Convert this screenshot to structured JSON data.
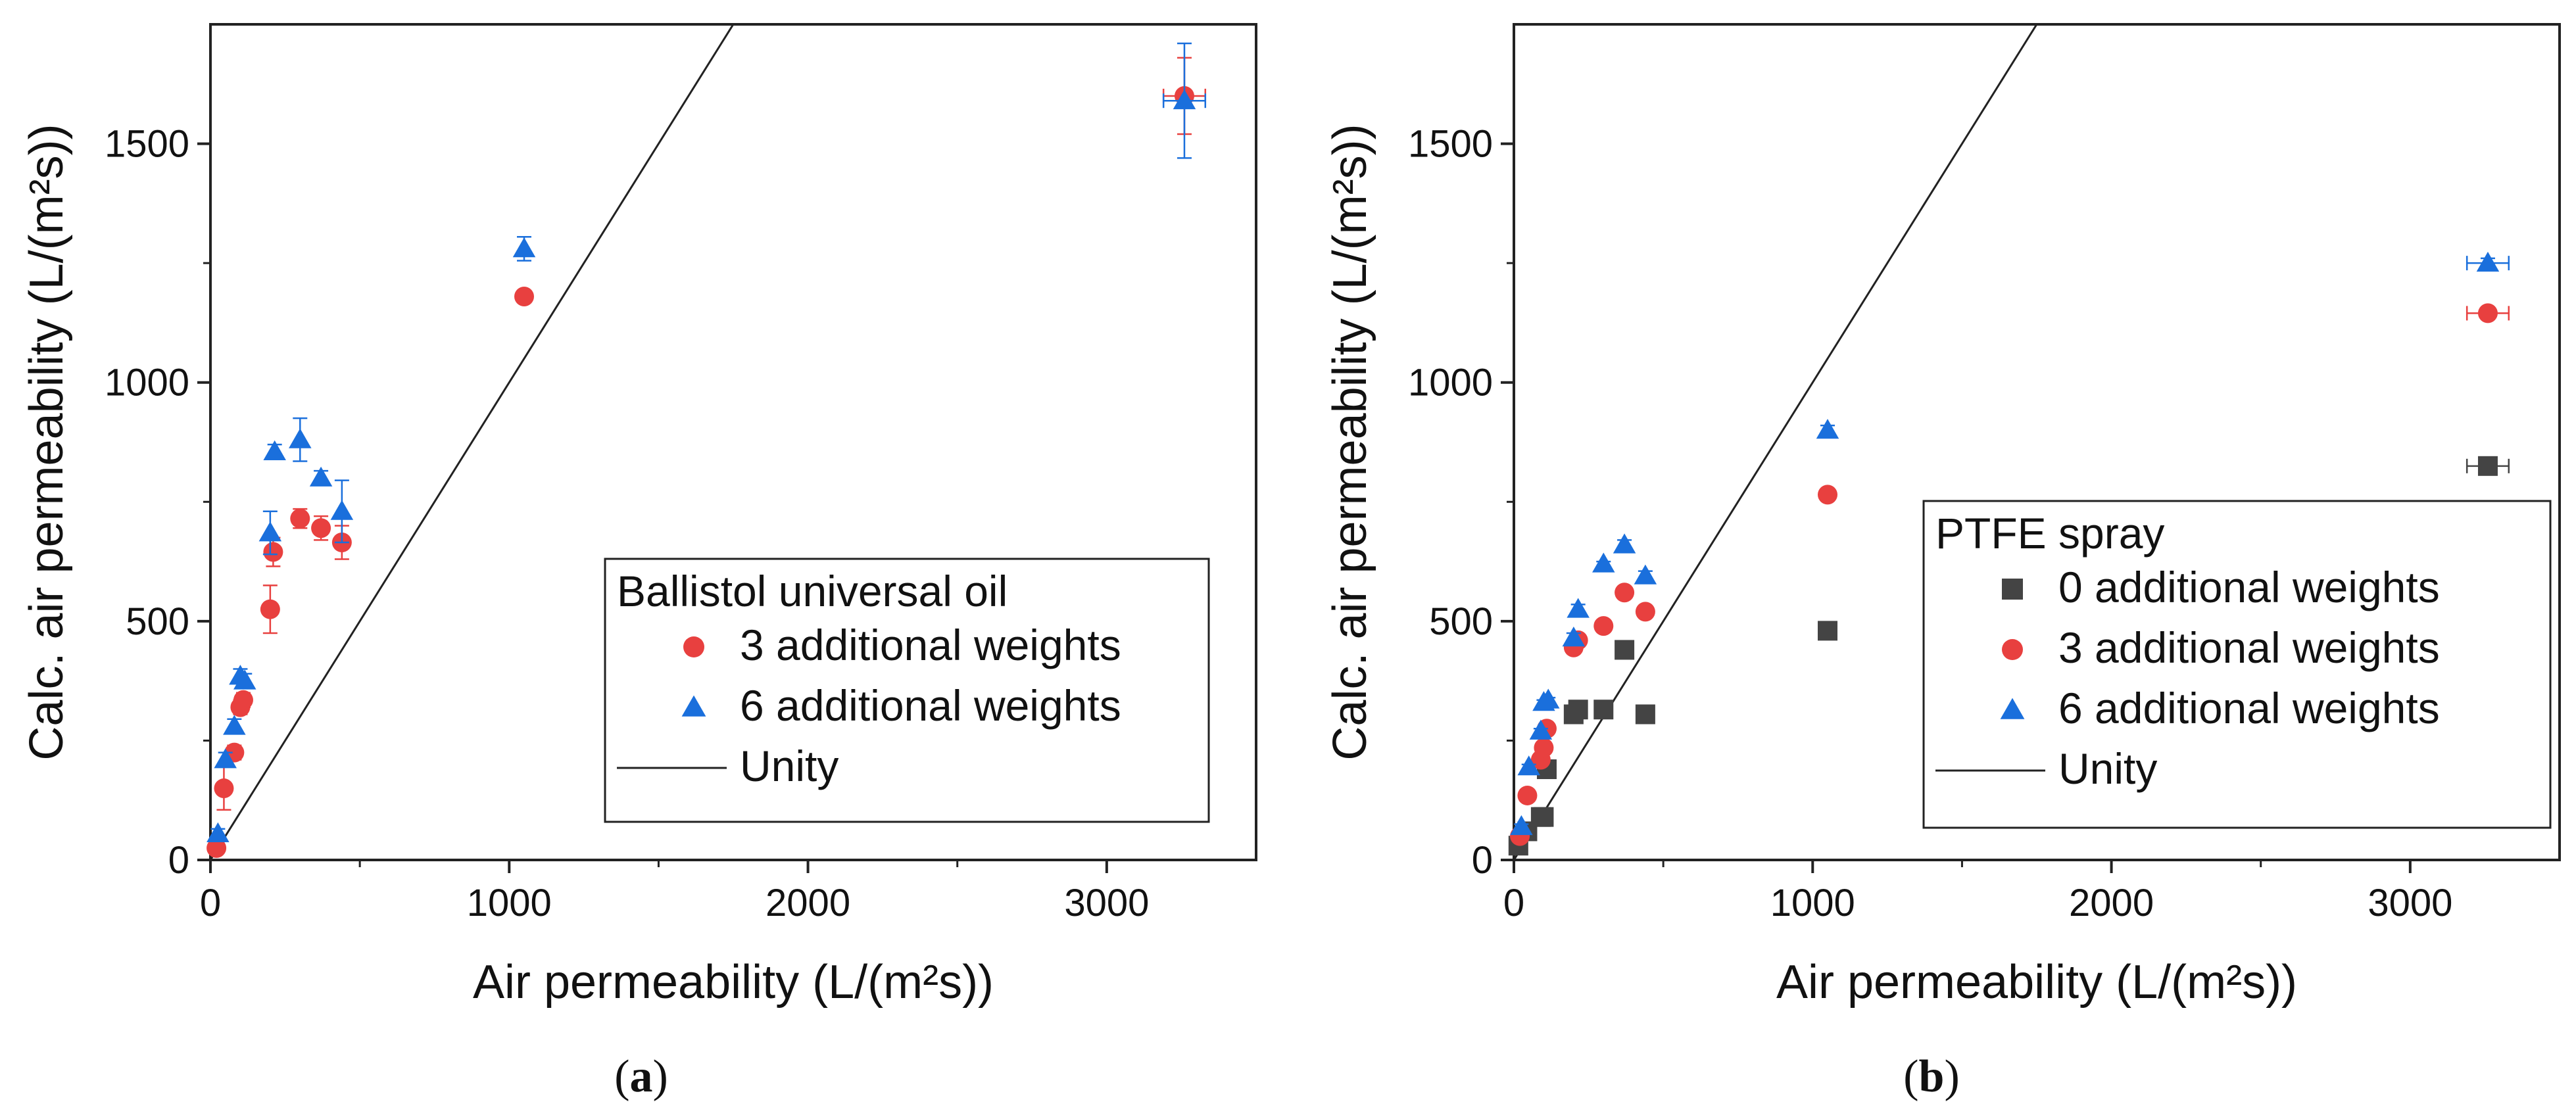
{
  "chart_data": [
    {
      "type": "scatter",
      "panel": "a",
      "caption_open": "(",
      "caption_letter": "a",
      "caption_close": ")",
      "xlabel": "Air permeability (L/(m²s))",
      "ylabel": "Calc. air permeability (L/(m²s))",
      "xlim": [
        0,
        3500
      ],
      "ylim": [
        0,
        1750
      ],
      "xticks": [
        0,
        1000,
        2000,
        3000
      ],
      "yticks": [
        0,
        500,
        1000,
        1500
      ],
      "legend_title": "Ballistol universal oil",
      "legend_position": "bottom-right",
      "unity_label": "Unity",
      "unity": [
        [
          0,
          0
        ],
        [
          1750,
          1750
        ]
      ],
      "series": [
        {
          "name": "3 additional weights",
          "marker": "circle",
          "color": "#e8403f",
          "points": [
            [
              20,
              25,
              0,
              10
            ],
            [
              45,
              150,
              0,
              45
            ],
            [
              80,
              225,
              0,
              15
            ],
            [
              100,
              320,
              0,
              15
            ],
            [
              110,
              335,
              0,
              15
            ],
            [
              200,
              525,
              0,
              50
            ],
            [
              210,
              645,
              0,
              30
            ],
            [
              300,
              715,
              0,
              20
            ],
            [
              370,
              695,
              0,
              25
            ],
            [
              440,
              665,
              0,
              35
            ],
            [
              1050,
              1180,
              0,
              10
            ],
            [
              3260,
              1600,
              70,
              80
            ]
          ]
        },
        {
          "name": "6 additional weights",
          "marker": "triangle",
          "color": "#1a6fdc",
          "points": [
            [
              25,
              55,
              0,
              10
            ],
            [
              50,
              210,
              0,
              15
            ],
            [
              80,
              280,
              0,
              15
            ],
            [
              100,
              385,
              0,
              15
            ],
            [
              115,
              375,
              0,
              15
            ],
            [
              200,
              685,
              0,
              45
            ],
            [
              215,
              855,
              0,
              15
            ],
            [
              300,
              880,
              0,
              45
            ],
            [
              370,
              800,
              0,
              15
            ],
            [
              440,
              730,
              0,
              65
            ],
            [
              1050,
              1280,
              0,
              25
            ],
            [
              3260,
              1590,
              70,
              120
            ]
          ]
        }
      ]
    },
    {
      "type": "scatter",
      "panel": "b",
      "caption_open": "(",
      "caption_letter": "b",
      "caption_close": ")",
      "xlabel": "Air permeability (L/(m²s))",
      "ylabel": "Calc. air permeability (L/(m²s))",
      "xlim": [
        0,
        3500
      ],
      "ylim": [
        0,
        1750
      ],
      "xticks": [
        0,
        1000,
        2000,
        3000
      ],
      "yticks": [
        0,
        500,
        1000,
        1500
      ],
      "legend_title": "PTFE spray",
      "legend_position": "bottom-right",
      "unity_label": "Unity",
      "unity": [
        [
          0,
          0
        ],
        [
          1750,
          1750
        ]
      ],
      "series": [
        {
          "name": "0 additional weights",
          "marker": "square",
          "color": "#444444",
          "points": [
            [
              15,
              30,
              0,
              5
            ],
            [
              45,
              60,
              0,
              5
            ],
            [
              90,
              90,
              0,
              5
            ],
            [
              100,
              90,
              0,
              5
            ],
            [
              110,
              190,
              0,
              5
            ],
            [
              200,
              305,
              0,
              10
            ],
            [
              215,
              315,
              0,
              10
            ],
            [
              300,
              315,
              0,
              5
            ],
            [
              370,
              440,
              0,
              15
            ],
            [
              440,
              305,
              0,
              10
            ],
            [
              1050,
              480,
              0,
              5
            ],
            [
              3260,
              825,
              70,
              10
            ]
          ]
        },
        {
          "name": "3 additional weights",
          "marker": "circle",
          "color": "#e8403f",
          "points": [
            [
              20,
              50,
              0,
              5
            ],
            [
              45,
              135,
              0,
              5
            ],
            [
              90,
              210,
              0,
              5
            ],
            [
              100,
              235,
              0,
              5
            ],
            [
              110,
              275,
              0,
              5
            ],
            [
              200,
              445,
              0,
              10
            ],
            [
              215,
              460,
              0,
              10
            ],
            [
              300,
              490,
              0,
              5
            ],
            [
              370,
              560,
              0,
              10
            ],
            [
              440,
              520,
              0,
              10
            ],
            [
              1050,
              765,
              0,
              10
            ],
            [
              3260,
              1145,
              70,
              10
            ]
          ]
        },
        {
          "name": "6 additional weights",
          "marker": "triangle",
          "color": "#1a6fdc",
          "points": [
            [
              25,
              70,
              0,
              5
            ],
            [
              50,
              195,
              0,
              5
            ],
            [
              90,
              270,
              0,
              5
            ],
            [
              100,
              330,
              0,
              5
            ],
            [
              115,
              335,
              0,
              5
            ],
            [
              200,
              465,
              0,
              10
            ],
            [
              215,
              525,
              0,
              10
            ],
            [
              300,
              620,
              0,
              5
            ],
            [
              370,
              660,
              0,
              10
            ],
            [
              440,
              595,
              0,
              10
            ],
            [
              1050,
              900,
              0,
              10
            ],
            [
              3260,
              1250,
              70,
              10
            ]
          ]
        }
      ]
    }
  ]
}
